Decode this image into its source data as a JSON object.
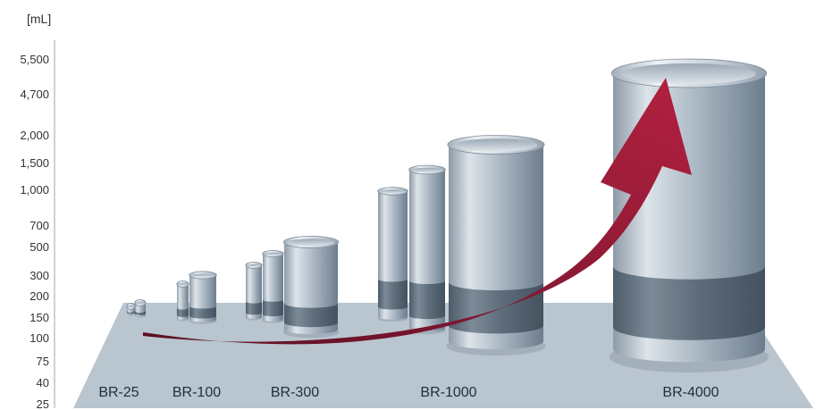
{
  "chart_data": {
    "type": "bar",
    "y_unit": "[mL]",
    "y_ticks": [
      "25",
      "40",
      "75",
      "100",
      "150",
      "200",
      "300",
      "500",
      "700",
      "1,000",
      "1,500",
      "2,000",
      "4,700",
      "5,500"
    ],
    "groups": [
      {
        "label": "BR-25",
        "sizes": [
          25,
          40
        ]
      },
      {
        "label": "BR-100",
        "sizes": [
          75,
          100
        ]
      },
      {
        "label": "BR-300",
        "sizes": [
          150,
          200,
          300
        ]
      },
      {
        "label": "BR-1000",
        "sizes": [
          500,
          700,
          1000
        ]
      },
      {
        "label": "BR-4000",
        "sizes": [
          4700
        ]
      }
    ],
    "title": "",
    "xlabel": "",
    "ylabel": "",
    "legend": "none",
    "grid": false
  }
}
